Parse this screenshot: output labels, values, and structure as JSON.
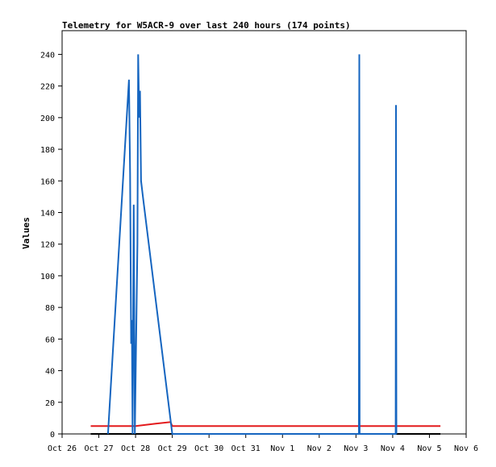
{
  "chart_data": {
    "type": "line",
    "title": "Telemetry for W5ACR-9 over last 240 hours (174 points)",
    "xlabel": "",
    "ylabel": "Values",
    "x_unit": "days",
    "xlim": [
      0,
      11
    ],
    "ylim": [
      0,
      255
    ],
    "grid": false,
    "x_ticks": [
      {
        "v": 0,
        "label": "Oct 26"
      },
      {
        "v": 1,
        "label": "Oct 27"
      },
      {
        "v": 2,
        "label": "Oct 28"
      },
      {
        "v": 3,
        "label": "Oct 29"
      },
      {
        "v": 4,
        "label": "Oct 30"
      },
      {
        "v": 5,
        "label": "Oct 31"
      },
      {
        "v": 6,
        "label": "Nov 1"
      },
      {
        "v": 7,
        "label": "Nov 2"
      },
      {
        "v": 8,
        "label": "Nov 3"
      },
      {
        "v": 9,
        "label": "Nov 4"
      },
      {
        "v": 10,
        "label": "Nov 5"
      },
      {
        "v": 11,
        "label": "Nov 6"
      }
    ],
    "y_ticks": [
      0,
      20,
      40,
      60,
      80,
      100,
      120,
      140,
      160,
      180,
      200,
      220,
      240
    ],
    "series": [
      {
        "color": "#000000",
        "points": [
          [
            0.78,
            0
          ],
          [
            10.3,
            0
          ]
        ]
      },
      {
        "color": "#e31a1c",
        "points": [
          [
            0.78,
            5
          ],
          [
            2.0,
            5
          ],
          [
            2.55,
            6.5
          ],
          [
            2.95,
            7.5
          ],
          [
            3.0,
            5
          ],
          [
            10.3,
            5
          ]
        ]
      },
      {
        "color": "#1565c0",
        "points": [
          [
            1.25,
            0
          ],
          [
            1.82,
            224
          ],
          [
            1.85,
            165
          ],
          [
            1.88,
            57
          ],
          [
            1.9,
            72
          ],
          [
            1.92,
            0
          ],
          [
            1.95,
            145
          ],
          [
            1.98,
            0
          ],
          [
            2.05,
            120
          ],
          [
            2.07,
            240
          ],
          [
            2.1,
            200
          ],
          [
            2.12,
            217
          ],
          [
            2.15,
            160
          ],
          [
            2.2,
            150
          ],
          [
            3.0,
            0
          ],
          [
            8.08,
            0
          ],
          [
            8.09,
            240
          ],
          [
            8.1,
            0
          ],
          [
            9.08,
            0
          ],
          [
            9.09,
            208
          ],
          [
            9.1,
            0
          ]
        ]
      }
    ]
  }
}
